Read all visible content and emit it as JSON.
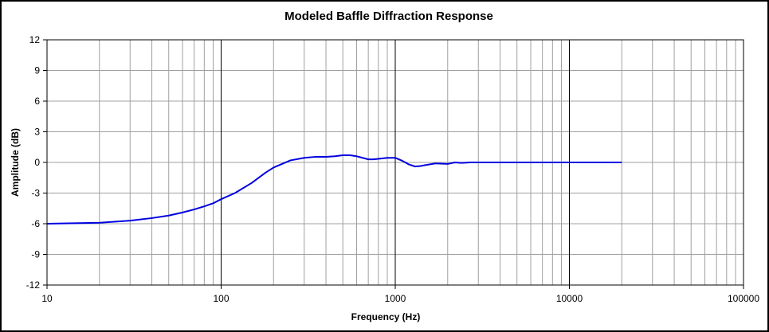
{
  "chart_data": {
    "type": "line",
    "title": "Modeled Baffle Diffraction Response",
    "xlabel": "Frequency (Hz)",
    "ylabel": "Amplitude (dB)",
    "xscale": "log",
    "xlim": [
      10,
      100000
    ],
    "ylim": [
      -12,
      12
    ],
    "xticks": [
      10,
      100,
      1000,
      10000,
      100000
    ],
    "xtick_labels": [
      "10",
      "100",
      "1000",
      "10000",
      "100000"
    ],
    "yticks": [
      12,
      9,
      6,
      3,
      0,
      -3,
      -6,
      -9,
      -12
    ],
    "ytick_labels": [
      "12",
      "9",
      "6",
      "3",
      "0",
      "-3",
      "-6",
      "-9",
      "-12"
    ],
    "grid": true,
    "legend": "none",
    "colors": {
      "line": "#0000e0",
      "grid_minor": "#a0a0a0",
      "grid_major": "#000000",
      "background": "#ffffff"
    },
    "series": [
      {
        "x": [
          10,
          20,
          30,
          40,
          50,
          60,
          70,
          80,
          90,
          100,
          120,
          150,
          180,
          200,
          250,
          300,
          350,
          400,
          450,
          500,
          550,
          600,
          650,
          700,
          750,
          800,
          900,
          1000,
          1100,
          1200,
          1300,
          1400,
          1500,
          1700,
          2000,
          2200,
          2400,
          2700,
          3000,
          4000,
          5000,
          7000,
          10000,
          15000,
          20000
        ],
        "y": [
          -6.0,
          -5.9,
          -5.7,
          -5.45,
          -5.2,
          -4.9,
          -4.6,
          -4.3,
          -4.0,
          -3.6,
          -3.0,
          -2.0,
          -1.0,
          -0.5,
          0.2,
          0.45,
          0.55,
          0.55,
          0.6,
          0.7,
          0.7,
          0.6,
          0.45,
          0.3,
          0.3,
          0.35,
          0.45,
          0.45,
          0.15,
          -0.2,
          -0.4,
          -0.35,
          -0.25,
          -0.1,
          -0.15,
          0.0,
          -0.05,
          0.0,
          0.0,
          0.0,
          0.0,
          0.0,
          0.0,
          0.0,
          0.0
        ]
      }
    ]
  }
}
